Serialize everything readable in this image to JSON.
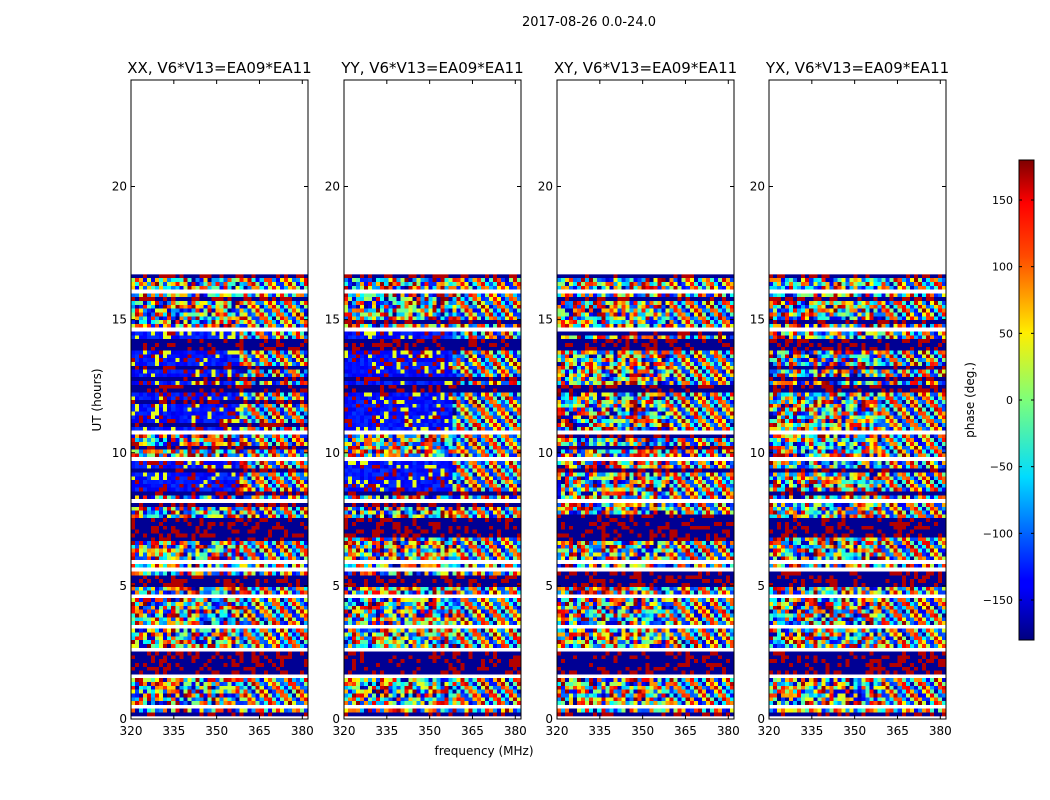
{
  "chart_data": {
    "type": "heatmap",
    "suptitle": "2017-08-26 0.0-24.0",
    "xlabel": "frequency (MHz)",
    "ylabel": "UT (hours)",
    "xlim": [
      320,
      382
    ],
    "ylim": [
      0,
      24
    ],
    "x_ticks": [
      320,
      335,
      350,
      365,
      380
    ],
    "y_ticks": [
      0,
      5,
      10,
      15,
      20
    ],
    "data_time_range": [
      0.1,
      16.7
    ],
    "panels": [
      {
        "title": "XX, V6*V13=EA09*EA11",
        "pattern": "parallel"
      },
      {
        "title": "YY, V6*V13=EA09*EA11",
        "pattern": "parallel"
      },
      {
        "title": "XY, V6*V13=EA09*EA11",
        "pattern": "cross"
      },
      {
        "title": "YX, V6*V13=EA09*EA11",
        "pattern": "cross"
      }
    ],
    "colorbar": {
      "label": "phase (deg.)",
      "range": [
        -180,
        180
      ],
      "ticks": [
        -150,
        -100,
        -50,
        0,
        50,
        100,
        150
      ],
      "colormap": "jet"
    },
    "blank_time_gaps": [
      0.4,
      1.55,
      2.6,
      3.5,
      4.65,
      5.55,
      5.85,
      8.15,
      9.75,
      10.8,
      14.65,
      16.05
    ],
    "dark_time_bands": [
      [
        0.15,
        0.3
      ],
      [
        1.7,
        1.9
      ],
      [
        2.0,
        2.5
      ],
      [
        5.0,
        5.4
      ],
      [
        6.8,
        7.6
      ],
      [
        13.9,
        14.2
      ],
      [
        12.3,
        12.6
      ],
      [
        16.5,
        16.7
      ]
    ]
  }
}
